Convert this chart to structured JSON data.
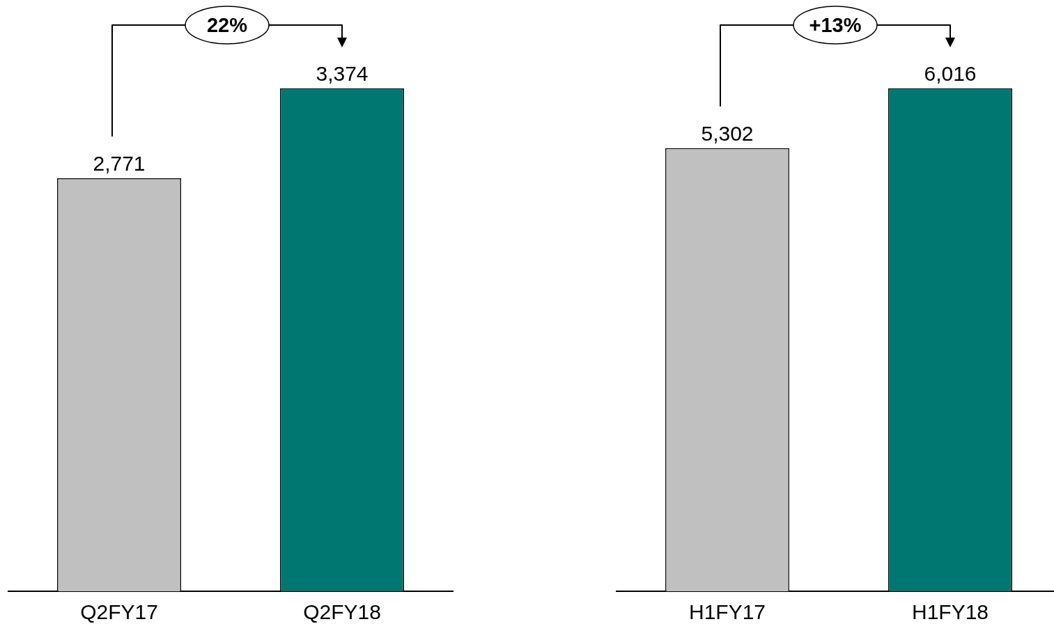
{
  "chart_data": [
    {
      "type": "bar",
      "categories": [
        "Q2FY17",
        "Q2FY18"
      ],
      "values": [
        2771,
        3374
      ],
      "colors": [
        "#c0c0c0",
        "#007770"
      ],
      "value_labels": [
        "2,771",
        "3,374"
      ],
      "annotations": [
        "22%"
      ]
    },
    {
      "type": "bar",
      "categories": [
        "H1FY17",
        "H1FY18"
      ],
      "values": [
        5302,
        6016
      ],
      "colors": [
        "#c0c0c0",
        "#007770"
      ],
      "value_labels": [
        "5,302",
        "6,016"
      ],
      "annotations": [
        "+13%"
      ]
    }
  ]
}
